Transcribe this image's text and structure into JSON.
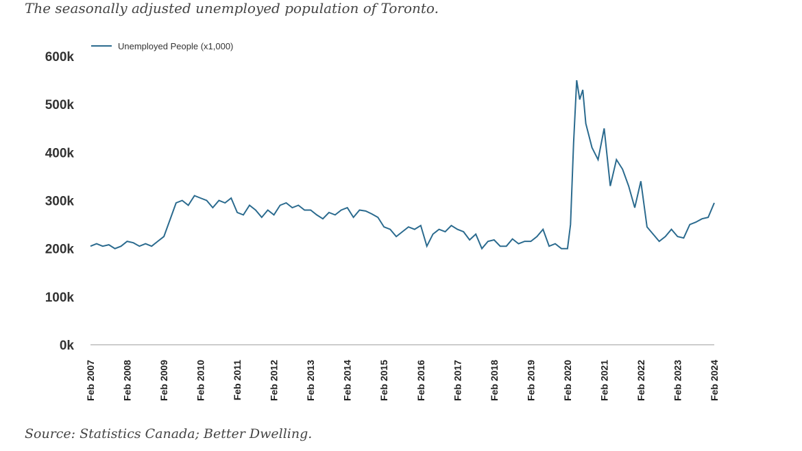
{
  "header": {
    "title": "The seasonally adjusted unemployed population of Toronto."
  },
  "footer": {
    "source": "Source: Statistics Canada; Better Dwelling."
  },
  "colors": {
    "line": "#2a6a8e",
    "axis": "#999999"
  },
  "chart_data": {
    "type": "line",
    "legend_position": "top-left",
    "grid": false,
    "ylim": [
      0,
      600
    ],
    "y_ticks": [
      {
        "value": 0,
        "label": "0k"
      },
      {
        "value": 100,
        "label": "100k"
      },
      {
        "value": 200,
        "label": "200k"
      },
      {
        "value": 300,
        "label": "300k"
      },
      {
        "value": 400,
        "label": "400k"
      },
      {
        "value": 500,
        "label": "500k"
      },
      {
        "value": 600,
        "label": "600k"
      }
    ],
    "x_ticks": [
      "Feb 2007",
      "Feb 2008",
      "Feb 2009",
      "Feb 2010",
      "Feb 2011",
      "Feb 2012",
      "Feb 2013",
      "Feb 2014",
      "Feb 2015",
      "Feb 2016",
      "Feb 2017",
      "Feb 2018",
      "Feb 2019",
      "Feb 2020",
      "Feb 2021",
      "Feb 2022",
      "Feb 2023",
      "Feb 2024"
    ],
    "series": [
      {
        "name": "Unemployed People (x1,000)",
        "points": [
          [
            "2007-02",
            205
          ],
          [
            "2007-04",
            210
          ],
          [
            "2007-06",
            205
          ],
          [
            "2007-08",
            208
          ],
          [
            "2007-10",
            200
          ],
          [
            "2007-12",
            205
          ],
          [
            "2008-02",
            215
          ],
          [
            "2008-04",
            212
          ],
          [
            "2008-06",
            205
          ],
          [
            "2008-08",
            210
          ],
          [
            "2008-10",
            205
          ],
          [
            "2008-12",
            215
          ],
          [
            "2009-02",
            225
          ],
          [
            "2009-04",
            260
          ],
          [
            "2009-06",
            295
          ],
          [
            "2009-08",
            300
          ],
          [
            "2009-10",
            290
          ],
          [
            "2009-12",
            310
          ],
          [
            "2010-02",
            305
          ],
          [
            "2010-04",
            300
          ],
          [
            "2010-06",
            285
          ],
          [
            "2010-08",
            300
          ],
          [
            "2010-10",
            295
          ],
          [
            "2010-12",
            305
          ],
          [
            "2011-02",
            275
          ],
          [
            "2011-04",
            270
          ],
          [
            "2011-06",
            290
          ],
          [
            "2011-08",
            280
          ],
          [
            "2011-10",
            265
          ],
          [
            "2011-12",
            280
          ],
          [
            "2012-02",
            270
          ],
          [
            "2012-04",
            290
          ],
          [
            "2012-06",
            295
          ],
          [
            "2012-08",
            285
          ],
          [
            "2012-10",
            290
          ],
          [
            "2012-12",
            280
          ],
          [
            "2013-02",
            280
          ],
          [
            "2013-04",
            270
          ],
          [
            "2013-06",
            262
          ],
          [
            "2013-08",
            275
          ],
          [
            "2013-10",
            270
          ],
          [
            "2013-12",
            280
          ],
          [
            "2014-02",
            285
          ],
          [
            "2014-04",
            265
          ],
          [
            "2014-06",
            280
          ],
          [
            "2014-08",
            278
          ],
          [
            "2014-10",
            272
          ],
          [
            "2014-12",
            265
          ],
          [
            "2015-02",
            245
          ],
          [
            "2015-04",
            240
          ],
          [
            "2015-06",
            225
          ],
          [
            "2015-08",
            235
          ],
          [
            "2015-10",
            245
          ],
          [
            "2015-12",
            240
          ],
          [
            "2016-02",
            248
          ],
          [
            "2016-04",
            205
          ],
          [
            "2016-06",
            230
          ],
          [
            "2016-08",
            240
          ],
          [
            "2016-10",
            235
          ],
          [
            "2016-12",
            248
          ],
          [
            "2017-02",
            240
          ],
          [
            "2017-04",
            235
          ],
          [
            "2017-06",
            218
          ],
          [
            "2017-08",
            230
          ],
          [
            "2017-10",
            200
          ],
          [
            "2017-12",
            215
          ],
          [
            "2018-02",
            218
          ],
          [
            "2018-04",
            205
          ],
          [
            "2018-06",
            205
          ],
          [
            "2018-08",
            220
          ],
          [
            "2018-10",
            210
          ],
          [
            "2018-12",
            215
          ],
          [
            "2019-02",
            215
          ],
          [
            "2019-04",
            225
          ],
          [
            "2019-06",
            240
          ],
          [
            "2019-08",
            205
          ],
          [
            "2019-10",
            210
          ],
          [
            "2019-12",
            200
          ],
          [
            "2020-02",
            200
          ],
          [
            "2020-03",
            250
          ],
          [
            "2020-04",
            420
          ],
          [
            "2020-05",
            550
          ],
          [
            "2020-06",
            510
          ],
          [
            "2020-07",
            530
          ],
          [
            "2020-08",
            460
          ],
          [
            "2020-10",
            410
          ],
          [
            "2020-12",
            385
          ],
          [
            "2021-02",
            450
          ],
          [
            "2021-04",
            330
          ],
          [
            "2021-06",
            385
          ],
          [
            "2021-08",
            365
          ],
          [
            "2021-10",
            330
          ],
          [
            "2021-12",
            285
          ],
          [
            "2022-02",
            340
          ],
          [
            "2022-04",
            245
          ],
          [
            "2022-06",
            230
          ],
          [
            "2022-08",
            215
          ],
          [
            "2022-10",
            225
          ],
          [
            "2022-12",
            240
          ],
          [
            "2023-02",
            225
          ],
          [
            "2023-04",
            222
          ],
          [
            "2023-06",
            250
          ],
          [
            "2023-08",
            255
          ],
          [
            "2023-10",
            262
          ],
          [
            "2023-12",
            265
          ],
          [
            "2024-02",
            295
          ]
        ]
      }
    ]
  }
}
